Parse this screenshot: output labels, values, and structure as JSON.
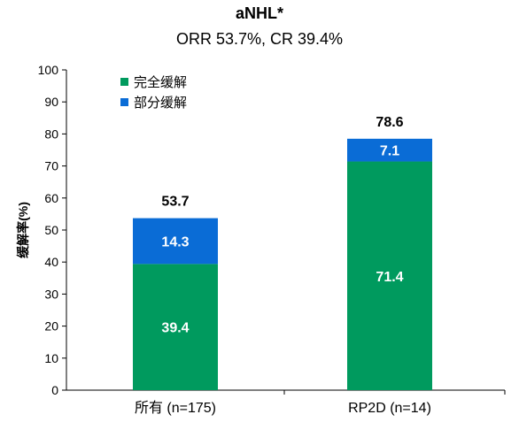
{
  "chart_data": {
    "type": "bar",
    "stacked": true,
    "title": "aNHL*",
    "subtitle": "ORR 53.7%, CR 39.4%",
    "ylabel": "缓解率(%)",
    "xlabel": "",
    "ylim": [
      0,
      100
    ],
    "yticks": [
      0,
      10,
      20,
      30,
      40,
      50,
      60,
      70,
      80,
      90,
      100
    ],
    "grid": false,
    "legend_position": "top-left",
    "categories": [
      "所有 (n=175)",
      "RP2D (n=14)"
    ],
    "series": [
      {
        "name": "完全缓解",
        "color": "#009A5E",
        "values": [
          39.4,
          71.4
        ]
      },
      {
        "name": "部分缓解",
        "color": "#0A6CD6",
        "values": [
          14.3,
          7.1
        ]
      }
    ],
    "totals": [
      53.7,
      78.6
    ]
  }
}
